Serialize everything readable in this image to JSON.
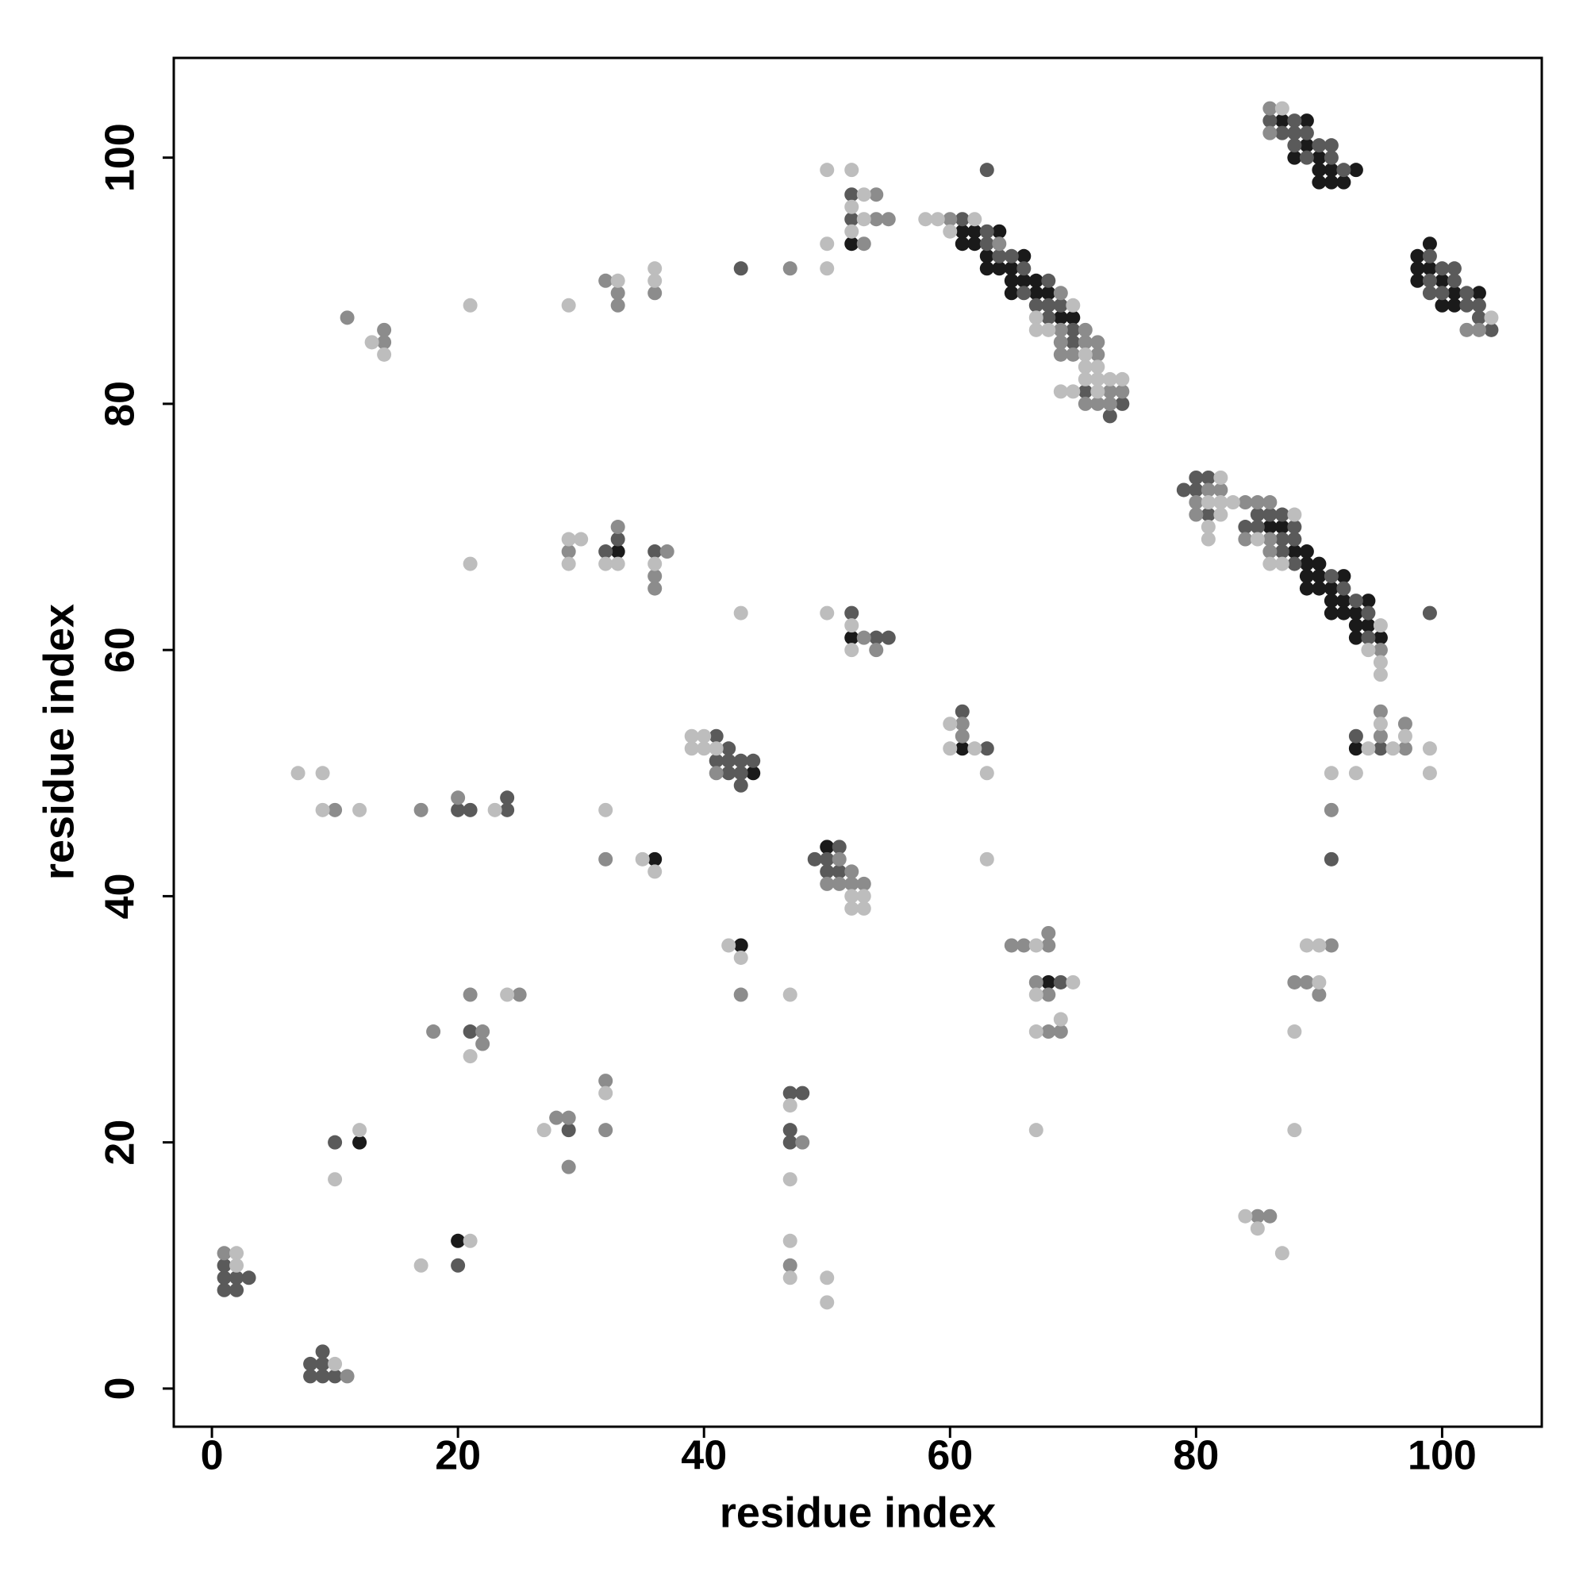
{
  "chart_data": {
    "type": "scatter",
    "xlabel": "residue index",
    "ylabel": "residue index",
    "xlim": [
      -3.1,
      108.1
    ],
    "ylim": [
      -3.1,
      108.1
    ],
    "xticks": [
      0,
      20,
      40,
      60,
      80,
      100
    ],
    "yticks": [
      0,
      20,
      40,
      60,
      80,
      100
    ],
    "grid": false,
    "series": [
      {
        "color": "#1a1a1a",
        "x": [
          12,
          20,
          36,
          33,
          44,
          43,
          50,
          52,
          52,
          61,
          62,
          64,
          61,
          62,
          63,
          66,
          63,
          64,
          65,
          65,
          66,
          67,
          65,
          67,
          68,
          69,
          70,
          61,
          68,
          93,
          86,
          87,
          88,
          89,
          89,
          90,
          89,
          90,
          92,
          89,
          90,
          91,
          91,
          92,
          94,
          91,
          92,
          93,
          93,
          94,
          93,
          95,
          87,
          89,
          89,
          88,
          90,
          90,
          91,
          93,
          90,
          91,
          92,
          99,
          98,
          98,
          99,
          98,
          100,
          101,
          103,
          100,
          101
        ],
        "values": [
          20,
          12,
          43,
          68,
          50,
          36,
          44,
          93,
          61,
          94,
          94,
          94,
          93,
          93,
          92,
          92,
          91,
          91,
          91,
          90,
          90,
          90,
          89,
          89,
          89,
          87,
          87,
          52,
          33,
          52,
          70,
          70,
          68,
          68,
          67,
          67,
          66,
          66,
          66,
          65,
          65,
          65,
          64,
          64,
          64,
          63,
          63,
          63,
          62,
          62,
          61,
          61,
          103,
          103,
          101,
          100,
          100,
          99,
          99,
          99,
          98,
          98,
          98,
          93,
          92,
          91,
          91,
          90,
          90,
          89,
          89,
          88,
          88
        ]
      },
      {
        "color": "#5a5a5a",
        "x": [
          1,
          1,
          2,
          3,
          1,
          2,
          8,
          9,
          9,
          8,
          9,
          10,
          10,
          20,
          21,
          29,
          20,
          21,
          24,
          24,
          32,
          33,
          36,
          41,
          42,
          41,
          42,
          43,
          44,
          42,
          43,
          43,
          43,
          47,
          48,
          47,
          47,
          49,
          51,
          50,
          50,
          51,
          52,
          52,
          52,
          54,
          55,
          63,
          61,
          63,
          63,
          64,
          65,
          66,
          68,
          66,
          67,
          68,
          69,
          68,
          70,
          70,
          71,
          74,
          73,
          61,
          63,
          69,
          91,
          93,
          95,
          99,
          80,
          81,
          79,
          80,
          81,
          85,
          86,
          87,
          84,
          85,
          88,
          87,
          88,
          87,
          88,
          91,
          92,
          93,
          94,
          94,
          86,
          88,
          87,
          88,
          89,
          88,
          90,
          91,
          89,
          91,
          92,
          99,
          100,
          101,
          99,
          101,
          99,
          100,
          102,
          102,
          103,
          103,
          104
        ],
        "values": [
          10,
          9,
          9,
          9,
          8,
          8,
          2,
          2,
          3,
          1,
          1,
          1,
          20,
          10,
          29,
          21,
          47,
          47,
          47,
          48,
          68,
          69,
          68,
          53,
          52,
          51,
          51,
          51,
          51,
          50,
          50,
          49,
          91,
          24,
          24,
          21,
          20,
          43,
          44,
          43,
          42,
          42,
          97,
          95,
          63,
          61,
          61,
          99,
          95,
          94,
          93,
          92,
          92,
          91,
          90,
          89,
          88,
          88,
          88,
          87,
          86,
          85,
          81,
          80,
          79,
          55,
          52,
          33,
          43,
          53,
          52,
          63,
          74,
          74,
          73,
          73,
          71,
          71,
          71,
          71,
          70,
          70,
          70,
          69,
          69,
          68,
          67,
          66,
          65,
          64,
          63,
          61,
          103,
          103,
          102,
          102,
          102,
          101,
          101,
          101,
          100,
          100,
          99,
          92,
          91,
          91,
          90,
          90,
          89,
          89,
          89,
          88,
          88,
          87,
          86
        ]
      },
      {
        "color": "#8c8c8c",
        "x": [
          1,
          11,
          48,
          18,
          22,
          22,
          21,
          25,
          28,
          29,
          29,
          32,
          32,
          10,
          17,
          20,
          32,
          11,
          14,
          14,
          29,
          32,
          33,
          33,
          36,
          33,
          37,
          36,
          36,
          41,
          43,
          47,
          47,
          51,
          52,
          50,
          51,
          52,
          53,
          54,
          54,
          55,
          53,
          53,
          54,
          60,
          64,
          69,
          69,
          71,
          69,
          71,
          72,
          69,
          70,
          72,
          73,
          74,
          71,
          72,
          73,
          61,
          61,
          65,
          66,
          68,
          68,
          67,
          68,
          68,
          69,
          85,
          86,
          88,
          89,
          90,
          91,
          91,
          95,
          95,
          97,
          97,
          81,
          82,
          80,
          84,
          85,
          86,
          80,
          84,
          86,
          86,
          95,
          86,
          86,
          102,
          103
        ],
        "values": [
          11,
          1,
          20,
          29,
          29,
          28,
          32,
          32,
          22,
          22,
          18,
          25,
          21,
          47,
          47,
          48,
          43,
          87,
          85,
          86,
          68,
          90,
          89,
          88,
          89,
          70,
          68,
          66,
          65,
          50,
          32,
          91,
          10,
          43,
          42,
          41,
          41,
          41,
          41,
          97,
          95,
          95,
          93,
          61,
          60,
          95,
          93,
          89,
          86,
          86,
          85,
          85,
          85,
          84,
          84,
          84,
          81,
          81,
          80,
          80,
          80,
          54,
          53,
          36,
          36,
          36,
          37,
          33,
          32,
          29,
          29,
          14,
          14,
          33,
          33,
          32,
          36,
          47,
          55,
          53,
          54,
          52,
          73,
          73,
          72,
          72,
          72,
          72,
          71,
          69,
          69,
          68,
          60,
          104,
          102,
          86,
          86
        ]
      },
      {
        "color": "#bdbdbd",
        "x": [
          2,
          2,
          10,
          12,
          10,
          17,
          21,
          21,
          24,
          27,
          32,
          7,
          9,
          9,
          12,
          23,
          32,
          35,
          36,
          13,
          14,
          21,
          21,
          29,
          29,
          30,
          29,
          33,
          36,
          36,
          32,
          33,
          36,
          39,
          40,
          39,
          40,
          41,
          50,
          43,
          50,
          42,
          43,
          47,
          47,
          47,
          47,
          47,
          50,
          50,
          52,
          53,
          52,
          53,
          50,
          52,
          50,
          53,
          52,
          53,
          52,
          52,
          52,
          58,
          59,
          62,
          60,
          70,
          67,
          67,
          68,
          71,
          71,
          72,
          71,
          72,
          73,
          74,
          69,
          70,
          72,
          60,
          60,
          62,
          63,
          63,
          67,
          70,
          67,
          67,
          69,
          67,
          84,
          85,
          87,
          88,
          88,
          90,
          89,
          90,
          91,
          93,
          94,
          95,
          96,
          97,
          99,
          99,
          82,
          81,
          82,
          83,
          82,
          88,
          81,
          81,
          85,
          86,
          87,
          95,
          94,
          95,
          95,
          87,
          104
        ],
        "values": [
          11,
          10,
          2,
          21,
          17,
          10,
          12,
          27,
          32,
          21,
          24,
          50,
          50,
          47,
          47,
          47,
          47,
          43,
          42,
          85,
          84,
          88,
          67,
          88,
          69,
          69,
          67,
          90,
          91,
          90,
          67,
          67,
          67,
          53,
          53,
          52,
          52,
          52,
          91,
          63,
          63,
          36,
          35,
          32,
          23,
          17,
          12,
          9,
          9,
          7,
          40,
          40,
          39,
          39,
          99,
          99,
          93,
          97,
          96,
          95,
          94,
          62,
          60,
          95,
          95,
          95,
          94,
          88,
          87,
          86,
          86,
          84,
          83,
          83,
          82,
          82,
          82,
          82,
          81,
          81,
          81,
          54,
          52,
          52,
          50,
          43,
          36,
          33,
          32,
          29,
          30,
          21,
          14,
          13,
          11,
          21,
          29,
          33,
          36,
          36,
          50,
          50,
          52,
          54,
          52,
          53,
          52,
          50,
          74,
          72,
          72,
          72,
          71,
          71,
          70,
          69,
          69,
          67,
          67,
          62,
          60,
          59,
          58,
          104,
          87
        ]
      }
    ]
  }
}
